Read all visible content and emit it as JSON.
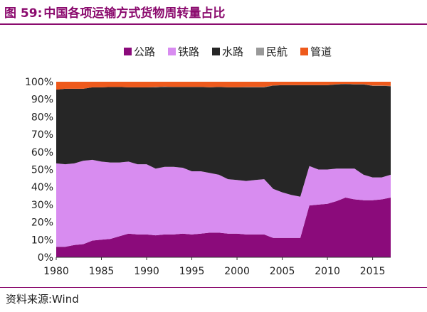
{
  "figure": {
    "label": "图 59:",
    "title": "中国各项运输方式货物周转量占比",
    "source": "资料来源:Wind"
  },
  "colors": {
    "title": "#8b0b6e",
    "公路": "#8b0b7b",
    "铁路": "#d88cf0",
    "水路": "#262626",
    "民航": "#999999",
    "管道": "#ee5a1c"
  },
  "chart_data": {
    "type": "area",
    "stacked": true,
    "title": "",
    "xlabel": "",
    "ylabel": "",
    "xlim": [
      1980,
      2017
    ],
    "ylim": [
      0,
      100
    ],
    "grid": false,
    "legend_position": "top-center",
    "x_ticks": [
      1980,
      1985,
      1990,
      1995,
      2000,
      2005,
      2010,
      2015
    ],
    "x_tick_labels": [
      "1980",
      "1985",
      "1990",
      "1995",
      "2000",
      "2005",
      "2010",
      "2015"
    ],
    "y_ticks": [
      0,
      10,
      20,
      30,
      40,
      50,
      60,
      70,
      80,
      90,
      100
    ],
    "y_tick_labels": [
      "0%",
      "10%",
      "20%",
      "30%",
      "40%",
      "50%",
      "60%",
      "70%",
      "80%",
      "90%",
      "100%"
    ],
    "x": [
      1980,
      1981,
      1982,
      1983,
      1984,
      1985,
      1986,
      1987,
      1988,
      1989,
      1990,
      1991,
      1992,
      1993,
      1994,
      1995,
      1996,
      1997,
      1998,
      1999,
      2000,
      2001,
      2002,
      2003,
      2004,
      2005,
      2006,
      2007,
      2008,
      2009,
      2010,
      2011,
      2012,
      2013,
      2014,
      2015,
      2016,
      2017
    ],
    "series": [
      {
        "name": "公路",
        "values": [
          6,
          6,
          7,
          7.5,
          9.5,
          10,
          10.5,
          12,
          13.5,
          13,
          13,
          12.5,
          13,
          13,
          13.5,
          13,
          13.5,
          14,
          14,
          13.5,
          13.5,
          13,
          13,
          13,
          11,
          11,
          11,
          11,
          29.5,
          30,
          30.5,
          32,
          34,
          33,
          32.5,
          32.5,
          33,
          34
        ]
      },
      {
        "name": "铁路",
        "values": [
          47.5,
          47,
          46.5,
          47.5,
          46,
          44.5,
          43.5,
          42,
          41,
          40,
          40,
          38,
          38.5,
          38.5,
          37.5,
          36,
          35.5,
          34,
          33,
          31,
          30.5,
          30.5,
          31,
          31.5,
          28,
          26,
          24.5,
          23.5,
          22.5,
          20,
          19.5,
          18.5,
          16.5,
          17.5,
          14.5,
          13,
          12.5,
          13
        ]
      },
      {
        "name": "水路",
        "values": [
          42,
          43,
          42.5,
          41,
          41.3,
          42.3,
          43,
          43,
          42.3,
          43.8,
          43.8,
          46.4,
          45.6,
          45.5,
          46,
          48,
          48,
          48.8,
          50,
          52.3,
          52.8,
          53.4,
          52.9,
          52.4,
          58.8,
          61,
          62.5,
          63.5,
          46,
          48,
          48,
          48,
          48.2,
          48,
          51.5,
          52.2,
          52.2,
          50.5
        ]
      },
      {
        "name": "民航",
        "values": [
          0,
          0,
          0,
          0,
          0,
          0,
          0,
          0,
          0,
          0,
          0,
          0.1,
          0.1,
          0.1,
          0.1,
          0.1,
          0.1,
          0.1,
          0.1,
          0.1,
          0.1,
          0.1,
          0.1,
          0.1,
          0.1,
          0.1,
          0.1,
          0.1,
          0.1,
          0.1,
          0.1,
          0.1,
          0.1,
          0.1,
          0.1,
          0.1,
          0.1,
          0.1
        ]
      },
      {
        "name": "管道",
        "values": [
          4.5,
          4,
          4,
          4,
          3.2,
          3.2,
          3,
          3,
          3.2,
          3.2,
          3.2,
          3,
          2.8,
          2.9,
          2.9,
          2.9,
          2.9,
          3.1,
          2.9,
          3.1,
          3.1,
          3,
          3,
          3,
          2.1,
          1.9,
          1.9,
          1.9,
          1.9,
          1.9,
          1.9,
          1.4,
          1.2,
          1.4,
          1.4,
          2.2,
          2.2,
          2.4
        ]
      }
    ]
  }
}
